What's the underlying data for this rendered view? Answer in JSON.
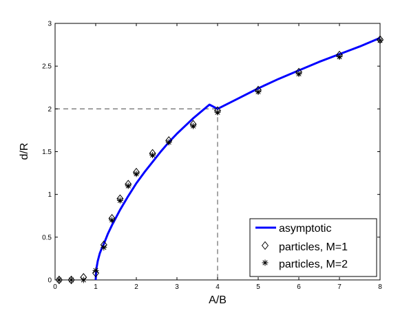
{
  "chart_data": {
    "type": "line",
    "title": "",
    "xlabel": "A/B",
    "ylabel": "d/R",
    "xlim": [
      0,
      8
    ],
    "ylim": [
      0,
      3
    ],
    "xticks": [
      "0",
      "1",
      "2",
      "3",
      "4",
      "5",
      "6",
      "7",
      "8"
    ],
    "yticks": [
      "0",
      "0.5",
      "1",
      "1.5",
      "2",
      "2.5",
      "3"
    ],
    "grid": false,
    "legend_position": "bottom-right",
    "reference_lines": [
      {
        "style": "dashed",
        "from": [
          0,
          2
        ],
        "to": [
          4,
          2
        ]
      },
      {
        "style": "dashed",
        "from": [
          4,
          2
        ],
        "to": [
          4,
          0
        ]
      }
    ],
    "series": [
      {
        "name": "asymptotic",
        "kind": "line",
        "color": "#0000ff",
        "x": [
          1,
          1.01,
          1.02,
          1.05,
          1.1,
          1.15,
          1.2,
          1.3,
          1.4,
          1.5,
          1.6,
          1.8,
          2,
          2.2,
          2.4,
          2.6,
          2.8,
          3,
          3.2,
          3.4,
          3.6,
          3.8,
          4,
          4.5,
          5,
          5.5,
          6,
          6.5,
          7,
          7.5,
          8
        ],
        "y": [
          0,
          0.1,
          0.14,
          0.22,
          0.31,
          0.37,
          0.42,
          0.54,
          0.64,
          0.73,
          0.82,
          0.98,
          1.13,
          1.26,
          1.38,
          1.5,
          1.61,
          1.71,
          1.8,
          1.89,
          1.97,
          2.05,
          2.0,
          2.12,
          2.24,
          2.35,
          2.45,
          2.55,
          2.64,
          2.73,
          2.83
        ]
      },
      {
        "name": "particles, M=1",
        "kind": "marker",
        "marker": "diamond",
        "x": [
          0.1,
          0.4,
          0.7,
          1.0,
          1.2,
          1.4,
          1.6,
          1.8,
          2.0,
          2.4,
          2.8,
          3.4,
          4.0,
          5.0,
          6.0,
          7.0,
          8.0
        ],
        "y": [
          0.0,
          0.0,
          0.03,
          0.08,
          0.41,
          0.72,
          0.95,
          1.12,
          1.26,
          1.48,
          1.63,
          1.82,
          1.98,
          2.22,
          2.43,
          2.63,
          2.81
        ]
      },
      {
        "name": "particles, M=2",
        "kind": "marker",
        "marker": "asterisk",
        "x": [
          0.1,
          0.4,
          0.7,
          1.0,
          1.2,
          1.4,
          1.6,
          1.8,
          2.0,
          2.4,
          2.8,
          3.4,
          4.0,
          5.0,
          6.0,
          7.0,
          8.0
        ],
        "y": [
          0.0,
          0.0,
          0.0,
          0.11,
          0.38,
          0.7,
          0.93,
          1.1,
          1.24,
          1.46,
          1.61,
          1.8,
          1.96,
          2.2,
          2.41,
          2.61,
          2.8
        ]
      }
    ]
  }
}
